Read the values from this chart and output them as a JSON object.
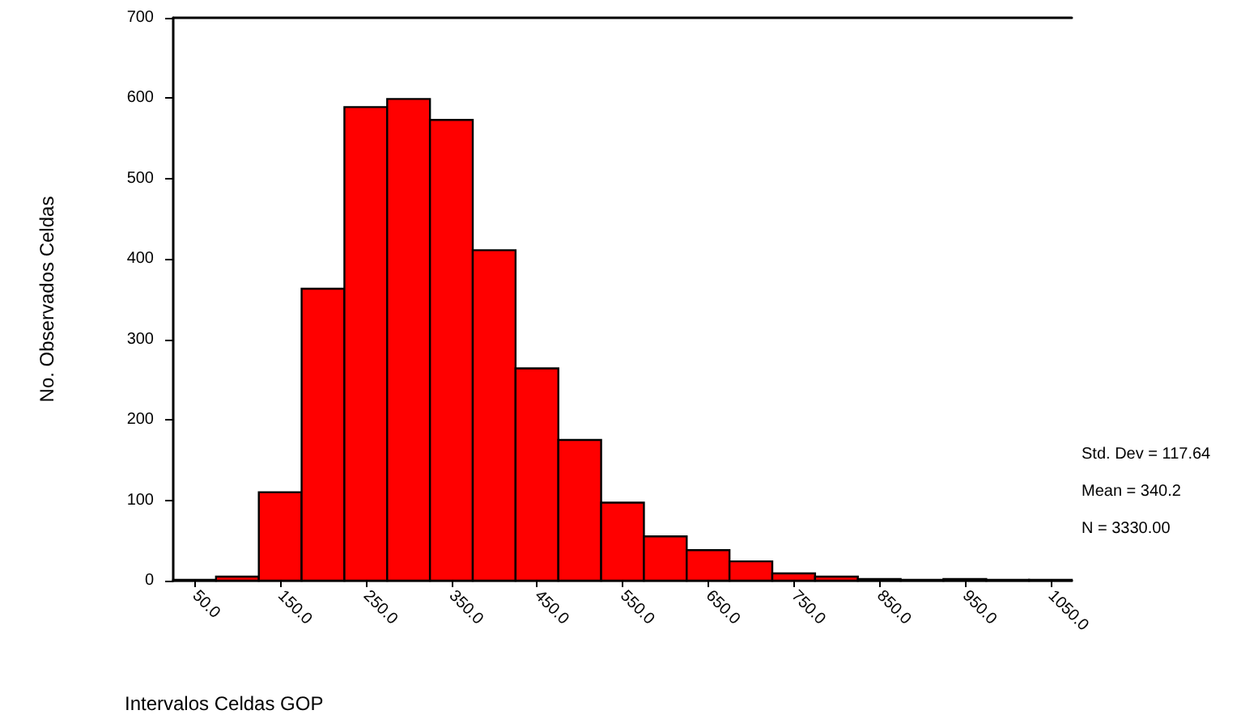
{
  "chart_data": {
    "type": "histogram",
    "xlabel": "Intervalos Celdas GOP",
    "ylabel": "No. Observados Celdas",
    "bins": [
      25,
      75,
      125,
      175,
      225,
      275,
      325,
      375,
      425,
      475,
      525,
      575,
      625,
      675,
      725,
      775,
      825,
      875,
      925,
      975,
      1025,
      1075
    ],
    "values": [
      1,
      5,
      110,
      363,
      589,
      599,
      573,
      411,
      264,
      175,
      97,
      55,
      38,
      24,
      9,
      5,
      2,
      1,
      2,
      1,
      1
    ],
    "color": "#ff0000",
    "xlim": [
      25,
      1075
    ],
    "xticks": [
      {
        "value": 50,
        "label": "50.0"
      },
      {
        "value": 150,
        "label": "150.0"
      },
      {
        "value": 250,
        "label": "250.0"
      },
      {
        "value": 350,
        "label": "350.0"
      },
      {
        "value": 450,
        "label": "450.0"
      },
      {
        "value": 550,
        "label": "550.0"
      },
      {
        "value": 650,
        "label": "650.0"
      },
      {
        "value": 750,
        "label": "750.0"
      },
      {
        "value": 850,
        "label": "850.0"
      },
      {
        "value": 950,
        "label": "950.0"
      },
      {
        "value": 1050,
        "label": "1050.0"
      }
    ],
    "ylim": [
      0,
      700
    ],
    "yticks": [
      0,
      100,
      200,
      300,
      400,
      500,
      600,
      700
    ],
    "grid": false,
    "annotations": [
      "Std. Dev = 117.64",
      "Mean = 340.2",
      "N = 3330.00"
    ]
  }
}
